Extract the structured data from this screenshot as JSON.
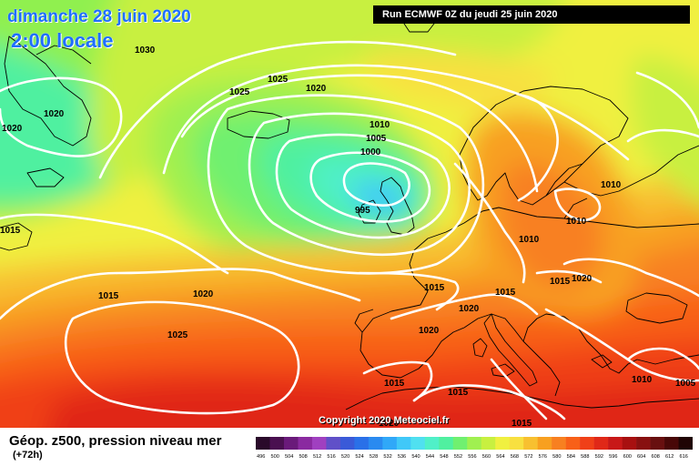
{
  "header": {
    "date": "dimanche 28 juin 2020",
    "time": "2:00 locale",
    "run": "Run ECMWF 0Z du jeudi 25 juin 2020"
  },
  "copyright": "Copyright 2020 Meteociel.fr",
  "footer": {
    "title": "Géop. z500, pression niveau mer",
    "subtitle": "(+72h)"
  },
  "pressure_labels": [
    "1030",
    "1025",
    "1025",
    "1020",
    "1020",
    "1020",
    "1010",
    "1005",
    "1000",
    "995",
    "1015",
    "1010",
    "1010",
    "1010",
    "1015",
    "1015",
    "1020",
    "1020",
    "1015",
    "1020",
    "1025",
    "1020",
    "1015",
    "1015",
    "1015",
    "1020",
    "1015",
    "1010",
    "1005"
  ],
  "color_scale": {
    "values": [
      "496",
      "500",
      "504",
      "508",
      "512",
      "516",
      "520",
      "524",
      "528",
      "532",
      "536",
      "540",
      "544",
      "548",
      "552",
      "556",
      "560",
      "564",
      "568",
      "572",
      "576",
      "580",
      "584",
      "588",
      "592",
      "596",
      "600",
      "604",
      "608",
      "612",
      "616"
    ],
    "colors": [
      "#2a0a2a",
      "#4a1050",
      "#6a1a7a",
      "#8a2aa0",
      "#a040c0",
      "#6050c8",
      "#3a5ad8",
      "#2a70e8",
      "#2a8af0",
      "#30a8f8",
      "#40c8f8",
      "#50e0f0",
      "#50f0c8",
      "#50f0a0",
      "#70f070",
      "#a0f050",
      "#c8f040",
      "#f0f040",
      "#f8e040",
      "#f8c030",
      "#f8a020",
      "#f88020",
      "#f86018",
      "#f04018",
      "#e02818",
      "#c81818",
      "#a81010",
      "#881010",
      "#681010",
      "#480808",
      "#200404"
    ]
  }
}
